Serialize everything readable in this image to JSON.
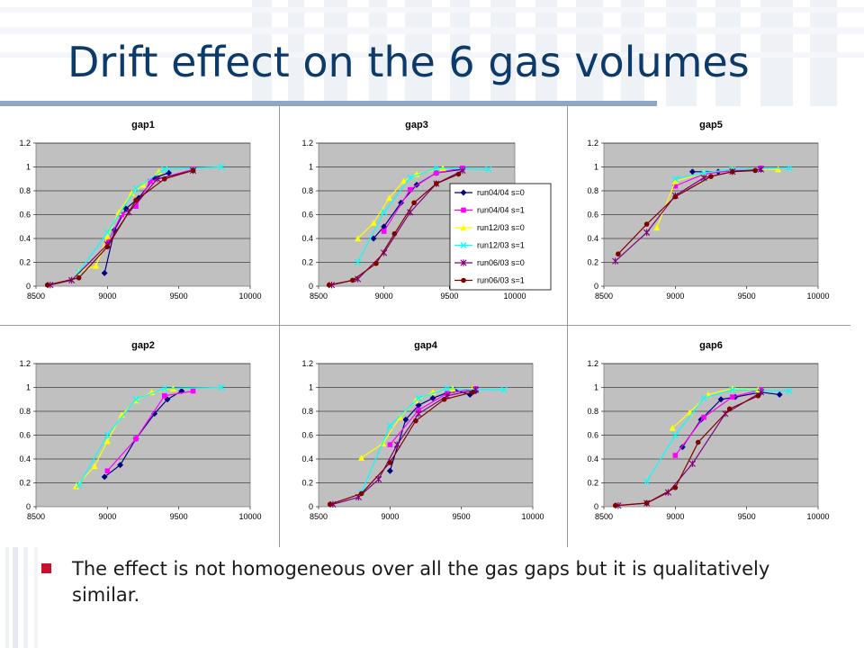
{
  "slide": {
    "title": "Drift effect on the 6 gas volumes",
    "bullet": "The effect is not homogeneous over all the gas gaps but it is qualitatively similar."
  },
  "style": {
    "title_color": "#0b3a6b",
    "rule_color": "#8fa6c4",
    "bullet_color": "#c8102e",
    "plot_background": "#c0c0c0"
  },
  "legend": {
    "entries": [
      {
        "label": "run04/04 s=0",
        "color": "#000080",
        "marker": "diamond"
      },
      {
        "label": "run04/04 s=1",
        "color": "#ff00ff",
        "marker": "square"
      },
      {
        "label": "run12/03 s=0",
        "color": "#ffff00",
        "marker": "triangle"
      },
      {
        "label": "run12/03 s=1",
        "color": "#00ffff",
        "marker": "x"
      },
      {
        "label": "run06/03 s=0",
        "color": "#800080",
        "marker": "star"
      },
      {
        "label": "run06/03 s=1",
        "color": "#800000",
        "marker": "circle"
      }
    ]
  },
  "chart_data": [
    {
      "type": "line",
      "title": "gap1",
      "xlim": [
        8500,
        10000
      ],
      "ylim": [
        0,
        1.2
      ],
      "x_ticks": [
        "8500",
        "9000",
        "9500",
        "10000"
      ],
      "y_ticks": [
        "0",
        "0.2",
        "0.4",
        "0.6",
        "0.8",
        "1",
        "1.2"
      ],
      "grid": true,
      "legend": "none",
      "series": [
        {
          "legend_index": 0,
          "points": [
            [
              8980,
              0.11
            ],
            [
              9050,
              0.47
            ],
            [
              9130,
              0.65
            ],
            [
              9220,
              0.74
            ],
            [
              9330,
              0.91
            ],
            [
              9430,
              0.95
            ]
          ]
        },
        {
          "legend_index": 1,
          "points": [
            [
              9000,
              0.37
            ],
            [
              9100,
              0.6
            ],
            [
              9200,
              0.67
            ],
            [
              9300,
              0.88
            ],
            [
              9600,
              0.98
            ]
          ]
        },
        {
          "legend_index": 2,
          "points": [
            [
              8800,
              0.12
            ],
            [
              8920,
              0.17
            ],
            [
              9000,
              0.42
            ],
            [
              9080,
              0.62
            ],
            [
              9170,
              0.78
            ],
            [
              9250,
              0.85
            ],
            [
              9360,
              0.96
            ]
          ]
        },
        {
          "legend_index": 3,
          "points": [
            [
              8800,
              0.12
            ],
            [
              9000,
              0.45
            ],
            [
              9200,
              0.82
            ],
            [
              9400,
              0.98
            ],
            [
              9800,
              1.0
            ]
          ]
        },
        {
          "legend_index": 4,
          "points": [
            [
              8600,
              0.01
            ],
            [
              8750,
              0.05
            ],
            [
              9000,
              0.35
            ],
            [
              9150,
              0.62
            ],
            [
              9350,
              0.9
            ],
            [
              9600,
              0.97
            ]
          ]
        },
        {
          "legend_index": 5,
          "points": [
            [
              8580,
              0.01
            ],
            [
              8800,
              0.07
            ],
            [
              9000,
              0.33
            ],
            [
              9200,
              0.72
            ],
            [
              9400,
              0.9
            ],
            [
              9600,
              0.97
            ]
          ]
        }
      ]
    },
    {
      "type": "line",
      "title": "gap3",
      "xlim": [
        8500,
        10000
      ],
      "ylim": [
        0,
        1.2
      ],
      "x_ticks": [
        "8500",
        "9000",
        "9500",
        "10000"
      ],
      "y_ticks": [
        "0",
        "0.2",
        "0.4",
        "0.6",
        "0.8",
        "1",
        "1.2"
      ],
      "grid": true,
      "legend": "right",
      "series": [
        {
          "legend_index": 0,
          "points": [
            [
              8920,
              0.4
            ],
            [
              9000,
              0.5
            ],
            [
              9130,
              0.7
            ],
            [
              9250,
              0.85
            ],
            [
              9400,
              0.95
            ],
            [
              9600,
              0.98
            ]
          ]
        },
        {
          "legend_index": 1,
          "points": [
            [
              9000,
              0.46
            ],
            [
              9200,
              0.81
            ],
            [
              9400,
              0.95
            ],
            [
              9600,
              0.99
            ]
          ]
        },
        {
          "legend_index": 2,
          "points": [
            [
              8800,
              0.4
            ],
            [
              8920,
              0.53
            ],
            [
              9040,
              0.74
            ],
            [
              9150,
              0.88
            ],
            [
              9250,
              0.94
            ],
            [
              9450,
              0.99
            ]
          ]
        },
        {
          "legend_index": 3,
          "points": [
            [
              8800,
              0.2
            ],
            [
              9000,
              0.62
            ],
            [
              9200,
              0.91
            ],
            [
              9400,
              0.99
            ],
            [
              9800,
              0.98
            ]
          ]
        },
        {
          "legend_index": 4,
          "points": [
            [
              8600,
              0.01
            ],
            [
              8800,
              0.06
            ],
            [
              9000,
              0.28
            ],
            [
              9200,
              0.62
            ],
            [
              9400,
              0.86
            ],
            [
              9600,
              0.97
            ]
          ]
        },
        {
          "legend_index": 5,
          "points": [
            [
              8580,
              0.01
            ],
            [
              8760,
              0.05
            ],
            [
              8940,
              0.19
            ],
            [
              9080,
              0.44
            ],
            [
              9230,
              0.7
            ],
            [
              9400,
              0.86
            ],
            [
              9570,
              0.94
            ]
          ]
        }
      ]
    },
    {
      "type": "line",
      "title": "gap5",
      "xlim": [
        8500,
        10000
      ],
      "ylim": [
        0,
        1.2
      ],
      "x_ticks": [
        "8500",
        "9000",
        "9500",
        "10000"
      ],
      "y_ticks": [
        "0",
        "0.2",
        "0.4",
        "0.6",
        "0.8",
        "1",
        "1.2"
      ],
      "grid": true,
      "legend": "none",
      "series": [
        {
          "legend_index": 0,
          "points": [
            [
              9120,
              0.96
            ],
            [
              9300,
              0.96
            ],
            [
              9600,
              0.98
            ]
          ]
        },
        {
          "legend_index": 1,
          "points": [
            [
              9000,
              0.84
            ],
            [
              9200,
              0.94
            ],
            [
              9400,
              0.97
            ],
            [
              9600,
              0.99
            ]
          ]
        },
        {
          "legend_index": 2,
          "points": [
            [
              8870,
              0.49
            ],
            [
              9000,
              0.88
            ],
            [
              9200,
              0.95
            ],
            [
              9400,
              0.98
            ],
            [
              9720,
              0.98
            ]
          ]
        },
        {
          "legend_index": 3,
          "points": [
            [
              9000,
              0.9
            ],
            [
              9200,
              0.95
            ],
            [
              9400,
              0.98
            ],
            [
              9800,
              0.99
            ]
          ]
        },
        {
          "legend_index": 4,
          "points": [
            [
              8580,
              0.21
            ],
            [
              8800,
              0.45
            ],
            [
              9000,
              0.76
            ],
            [
              9200,
              0.91
            ],
            [
              9400,
              0.96
            ],
            [
              9600,
              0.98
            ]
          ]
        },
        {
          "legend_index": 5,
          "points": [
            [
              8600,
              0.27
            ],
            [
              8800,
              0.52
            ],
            [
              9000,
              0.75
            ],
            [
              9250,
              0.92
            ],
            [
              9400,
              0.96
            ],
            [
              9560,
              0.97
            ]
          ]
        }
      ]
    },
    {
      "type": "line",
      "title": "gap2",
      "xlim": [
        8500,
        10000
      ],
      "ylim": [
        0,
        1.2
      ],
      "x_ticks": [
        "8500",
        "9000",
        "9500",
        "10000"
      ],
      "y_ticks": [
        "0",
        "0.2",
        "0.4",
        "0.6",
        "0.8",
        "1",
        "1.2"
      ],
      "grid": true,
      "legend": "none",
      "series": [
        {
          "legend_index": 0,
          "points": [
            [
              8980,
              0.25
            ],
            [
              9090,
              0.35
            ],
            [
              9200,
              0.57
            ],
            [
              9330,
              0.78
            ],
            [
              9420,
              0.9
            ],
            [
              9520,
              0.97
            ]
          ]
        },
        {
          "legend_index": 1,
          "points": [
            [
              9000,
              0.3
            ],
            [
              9200,
              0.57
            ],
            [
              9400,
              0.93
            ],
            [
              9600,
              0.97
            ]
          ]
        },
        {
          "legend_index": 2,
          "points": [
            [
              8780,
              0.17
            ],
            [
              8910,
              0.34
            ],
            [
              9000,
              0.55
            ],
            [
              9100,
              0.77
            ],
            [
              9200,
              0.89
            ],
            [
              9310,
              0.96
            ],
            [
              9460,
              0.99
            ]
          ]
        },
        {
          "legend_index": 3,
          "points": [
            [
              8800,
              0.18
            ],
            [
              9000,
              0.6
            ],
            [
              9200,
              0.9
            ],
            [
              9400,
              0.99
            ],
            [
              9800,
              1.0
            ]
          ]
        }
      ]
    },
    {
      "type": "line",
      "title": "gap4",
      "xlim": [
        8500,
        10000
      ],
      "ylim": [
        0,
        1.2
      ],
      "x_ticks": [
        "8500",
        "9000",
        "9500",
        "10000"
      ],
      "y_ticks": [
        "0",
        "0.2",
        "0.4",
        "0.6",
        "0.8",
        "1",
        "1.2"
      ],
      "grid": true,
      "legend": "none",
      "series": [
        {
          "legend_index": 0,
          "points": [
            [
              9000,
              0.3
            ],
            [
              9110,
              0.73
            ],
            [
              9200,
              0.85
            ],
            [
              9300,
              0.91
            ],
            [
              9450,
              0.98
            ],
            [
              9560,
              0.94
            ],
            [
              9600,
              0.97
            ]
          ]
        },
        {
          "legend_index": 1,
          "points": [
            [
              9000,
              0.52
            ],
            [
              9200,
              0.81
            ],
            [
              9400,
              0.95
            ],
            [
              9600,
              0.99
            ]
          ]
        },
        {
          "legend_index": 2,
          "points": [
            [
              8800,
              0.41
            ],
            [
              8950,
              0.53
            ],
            [
              9070,
              0.75
            ],
            [
              9180,
              0.89
            ],
            [
              9300,
              0.96
            ],
            [
              9440,
              0.99
            ],
            [
              9580,
              0.99
            ]
          ]
        },
        {
          "legend_index": 3,
          "points": [
            [
              8800,
              0.12
            ],
            [
              9000,
              0.68
            ],
            [
              9200,
              0.91
            ],
            [
              9400,
              0.99
            ],
            [
              9800,
              0.98
            ]
          ]
        },
        {
          "legend_index": 4,
          "points": [
            [
              8600,
              0.02
            ],
            [
              8780,
              0.08
            ],
            [
              8920,
              0.23
            ],
            [
              9050,
              0.52
            ],
            [
              9200,
              0.78
            ],
            [
              9400,
              0.93
            ],
            [
              9600,
              0.98
            ]
          ]
        },
        {
          "legend_index": 5,
          "points": [
            [
              8580,
              0.02
            ],
            [
              8800,
              0.11
            ],
            [
              9000,
              0.37
            ],
            [
              9180,
              0.72
            ],
            [
              9380,
              0.9
            ],
            [
              9580,
              0.96
            ]
          ]
        }
      ]
    },
    {
      "type": "line",
      "title": "gap6",
      "xlim": [
        8500,
        10000
      ],
      "ylim": [
        0,
        1.2
      ],
      "x_ticks": [
        "8500",
        "9000",
        "9500",
        "10000"
      ],
      "y_ticks": [
        "0",
        "0.2",
        "0.4",
        "0.6",
        "0.8",
        "1",
        "1.2"
      ],
      "grid": true,
      "legend": "none",
      "series": [
        {
          "legend_index": 0,
          "points": [
            [
              9050,
              0.5
            ],
            [
              9180,
              0.73
            ],
            [
              9320,
              0.9
            ],
            [
              9420,
              0.92
            ],
            [
              9600,
              0.96
            ],
            [
              9730,
              0.94
            ]
          ]
        },
        {
          "legend_index": 1,
          "points": [
            [
              9000,
              0.43
            ],
            [
              9200,
              0.75
            ],
            [
              9400,
              0.92
            ],
            [
              9600,
              0.98
            ]
          ]
        },
        {
          "legend_index": 2,
          "points": [
            [
              8980,
              0.66
            ],
            [
              9100,
              0.79
            ],
            [
              9230,
              0.94
            ],
            [
              9400,
              0.99
            ],
            [
              9580,
              0.98
            ]
          ]
        },
        {
          "legend_index": 3,
          "points": [
            [
              8800,
              0.21
            ],
            [
              9000,
              0.6
            ],
            [
              9200,
              0.91
            ],
            [
              9400,
              0.98
            ],
            [
              9800,
              0.97
            ]
          ]
        },
        {
          "legend_index": 4,
          "points": [
            [
              8600,
              0.01
            ],
            [
              8800,
              0.03
            ],
            [
              8950,
              0.12
            ],
            [
              9120,
              0.36
            ],
            [
              9350,
              0.78
            ],
            [
              9600,
              0.96
            ]
          ]
        },
        {
          "legend_index": 5,
          "points": [
            [
              8580,
              0.01
            ],
            [
              8800,
              0.03
            ],
            [
              9000,
              0.16
            ],
            [
              9160,
              0.54
            ],
            [
              9380,
              0.82
            ],
            [
              9580,
              0.93
            ]
          ]
        }
      ]
    }
  ]
}
